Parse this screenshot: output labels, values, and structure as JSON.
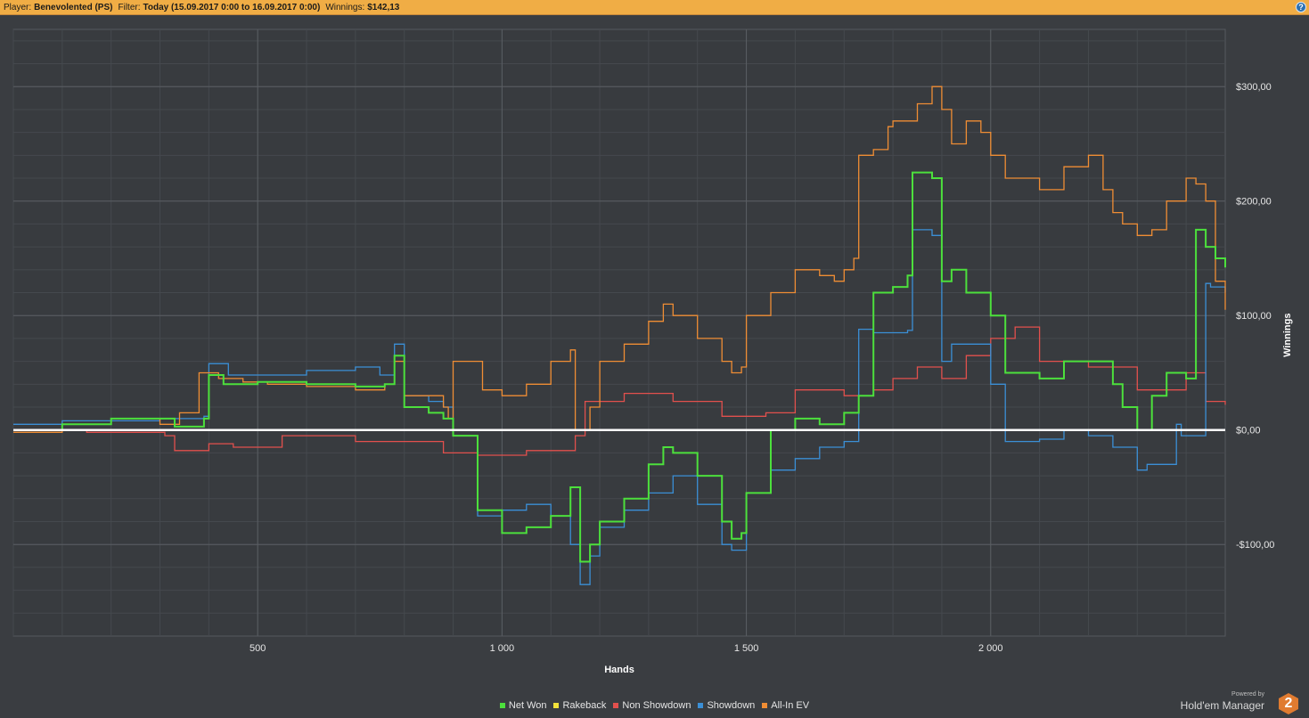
{
  "header": {
    "player_label": "Player:",
    "player_value": "Benevolented (PS)",
    "filter_label": "Filter:",
    "filter_value": "Today (15.09.2017 0:00 to 16.09.2017 0:00)",
    "winnings_label": "Winnings:",
    "winnings_value": "$142,13",
    "help_glyph": "?"
  },
  "chart_data": {
    "type": "line",
    "title": "",
    "xlabel": "Hands",
    "ylabel": "Winnings",
    "xlim": [
      0,
      2480
    ],
    "ylim": [
      -180,
      350
    ],
    "x_ticks": [
      500,
      1000,
      1500,
      2000
    ],
    "x_tick_labels": [
      "500",
      "1 000",
      "1 500",
      "2 000"
    ],
    "y_ticks": [
      -100,
      0,
      100,
      200,
      300
    ],
    "y_tick_labels": [
      "-$100,00",
      "$0,00",
      "$100,00",
      "$200,00",
      "$300,00"
    ],
    "grid": true,
    "legend_position": "bottom-center",
    "series": [
      {
        "name": "Rakeback",
        "color": "#f2e23a",
        "x": [
          0,
          2480
        ],
        "y": [
          0,
          0
        ]
      },
      {
        "name": "Non Showdown",
        "color": "#e2504d",
        "x": [
          0,
          150,
          310,
          330,
          400,
          450,
          550,
          700,
          880,
          950,
          1050,
          1150,
          1170,
          1250,
          1350,
          1450,
          1540,
          1600,
          1700,
          1760,
          1800,
          1850,
          1900,
          1950,
          2000,
          2050,
          2100,
          2200,
          2250,
          2300,
          2370,
          2400,
          2440,
          2480
        ],
        "y": [
          0,
          -2,
          -5,
          -18,
          -12,
          -15,
          -5,
          -10,
          -20,
          -22,
          -18,
          -5,
          25,
          32,
          25,
          12,
          15,
          35,
          30,
          35,
          45,
          55,
          45,
          65,
          80,
          90,
          60,
          55,
          55,
          35,
          35,
          50,
          25,
          22
        ]
      },
      {
        "name": "Showdown",
        "color": "#3b8fd6",
        "x": [
          0,
          100,
          300,
          390,
          400,
          440,
          500,
          600,
          700,
          750,
          780,
          800,
          850,
          880,
          900,
          950,
          1000,
          1050,
          1100,
          1140,
          1160,
          1180,
          1200,
          1250,
          1300,
          1350,
          1400,
          1450,
          1470,
          1490,
          1500,
          1550,
          1600,
          1650,
          1700,
          1730,
          1760,
          1830,
          1840,
          1880,
          1900,
          1920,
          2000,
          2030,
          2100,
          2150,
          2200,
          2250,
          2300,
          2320,
          2380,
          2390,
          2400,
          2440,
          2450,
          2480
        ],
        "y": [
          5,
          8,
          10,
          12,
          58,
          48,
          48,
          52,
          55,
          48,
          75,
          30,
          25,
          20,
          -5,
          -75,
          -70,
          -65,
          -75,
          -100,
          -135,
          -110,
          -85,
          -70,
          -55,
          -40,
          -65,
          -100,
          -105,
          -105,
          -55,
          -35,
          -25,
          -15,
          -10,
          88,
          85,
          87,
          175,
          170,
          60,
          75,
          40,
          -10,
          -8,
          0,
          -5,
          -15,
          -35,
          -30,
          5,
          -5,
          -5,
          128,
          125,
          120
        ]
      },
      {
        "name": "All-In EV",
        "color": "#ef8d34",
        "x": [
          0,
          100,
          200,
          300,
          340,
          380,
          420,
          470,
          520,
          600,
          700,
          760,
          780,
          800,
          850,
          880,
          890,
          900,
          960,
          1000,
          1050,
          1100,
          1140,
          1150,
          1170,
          1180,
          1200,
          1250,
          1300,
          1330,
          1350,
          1400,
          1450,
          1470,
          1490,
          1500,
          1550,
          1600,
          1650,
          1680,
          1700,
          1720,
          1730,
          1760,
          1790,
          1800,
          1850,
          1880,
          1900,
          1920,
          1950,
          1980,
          2000,
          2030,
          2100,
          2150,
          2200,
          2230,
          2250,
          2270,
          2300,
          2330,
          2360,
          2400,
          2420,
          2440,
          2460,
          2480
        ],
        "y": [
          -2,
          5,
          10,
          5,
          15,
          50,
          45,
          42,
          40,
          38,
          35,
          40,
          60,
          30,
          30,
          20,
          10,
          60,
          35,
          30,
          40,
          60,
          70,
          0,
          0,
          20,
          60,
          75,
          95,
          110,
          100,
          80,
          60,
          50,
          55,
          100,
          120,
          140,
          135,
          130,
          140,
          150,
          240,
          245,
          265,
          270,
          285,
          300,
          280,
          250,
          270,
          260,
          240,
          220,
          210,
          230,
          240,
          210,
          190,
          180,
          170,
          175,
          200,
          220,
          215,
          200,
          130,
          105
        ]
      },
      {
        "name": "Net Won",
        "color": "#4ce03c",
        "x": [
          0,
          100,
          200,
          300,
          330,
          390,
          400,
          430,
          500,
          600,
          700,
          760,
          780,
          800,
          850,
          880,
          900,
          950,
          1000,
          1050,
          1100,
          1140,
          1160,
          1180,
          1200,
          1250,
          1300,
          1330,
          1350,
          1400,
          1450,
          1470,
          1490,
          1500,
          1550,
          1600,
          1650,
          1700,
          1730,
          1760,
          1800,
          1830,
          1840,
          1880,
          1900,
          1920,
          1950,
          2000,
          2030,
          2100,
          2150,
          2200,
          2250,
          2270,
          2300,
          2330,
          2360,
          2400,
          2420,
          2440,
          2460,
          2480
        ],
        "y": [
          0,
          5,
          10,
          10,
          3,
          10,
          48,
          40,
          42,
          40,
          38,
          40,
          65,
          20,
          15,
          10,
          -5,
          -70,
          -90,
          -85,
          -75,
          -50,
          -115,
          -100,
          -80,
          -60,
          -30,
          -15,
          -20,
          -40,
          -80,
          -95,
          -90,
          -55,
          0,
          10,
          5,
          15,
          30,
          120,
          125,
          135,
          225,
          220,
          130,
          140,
          120,
          100,
          50,
          45,
          60,
          60,
          40,
          20,
          0,
          30,
          50,
          45,
          175,
          160,
          150,
          142
        ]
      }
    ]
  },
  "branding": {
    "powered_by": "Powered by",
    "product_name": "Hold'em Manager",
    "logo_glyph": "2"
  }
}
